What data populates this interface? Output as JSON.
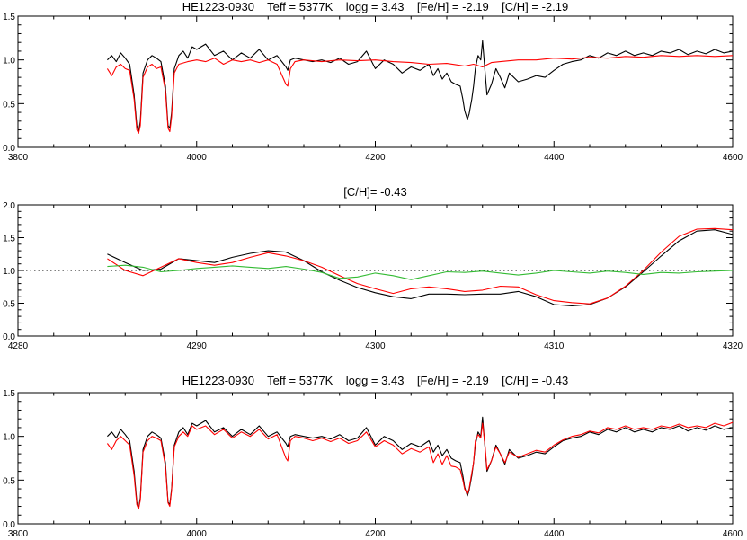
{
  "chart_data": [
    {
      "type": "line",
      "title": "HE1223-0930    Teff = 5377K    logg = 3.43    [Fe/H] = -2.19    [C/H] = -2.19",
      "xlabel": "",
      "ylabel": "",
      "xlim": [
        3800,
        4600
      ],
      "ylim": [
        0,
        1.5
      ],
      "xticks": [
        3800,
        4000,
        4200,
        4400,
        4600
      ],
      "yticks": [
        0.0,
        0.5,
        1.0,
        1.5
      ],
      "grid": false,
      "series": [
        {
          "color": "#000000",
          "x": [
            3900,
            3905,
            3910,
            3915,
            3920,
            3925,
            3930,
            3933,
            3935,
            3937,
            3940,
            3945,
            3950,
            3955,
            3960,
            3965,
            3968,
            3970,
            3972,
            3975,
            3980,
            3985,
            3990,
            3995,
            4000,
            4010,
            4020,
            4030,
            4040,
            4050,
            4060,
            4070,
            4080,
            4090,
            4100,
            4102,
            4105,
            4110,
            4120,
            4130,
            4140,
            4150,
            4160,
            4170,
            4180,
            4190,
            4200,
            4210,
            4220,
            4230,
            4240,
            4250,
            4260,
            4265,
            4270,
            4275,
            4280,
            4285,
            4290,
            4295,
            4298,
            4300,
            4303,
            4305,
            4308,
            4310,
            4312,
            4315,
            4318,
            4320,
            4323,
            4325,
            4330,
            4335,
            4340,
            4345,
            4350,
            4360,
            4370,
            4380,
            4390,
            4400,
            4410,
            4420,
            4430,
            4440,
            4450,
            4460,
            4470,
            4480,
            4490,
            4500,
            4510,
            4520,
            4530,
            4540,
            4550,
            4560,
            4570,
            4580,
            4590,
            4600
          ],
          "y": [
            1.0,
            1.05,
            0.98,
            1.08,
            1.02,
            0.95,
            0.6,
            0.25,
            0.18,
            0.3,
            0.85,
            1.0,
            1.05,
            1.02,
            0.98,
            0.7,
            0.25,
            0.22,
            0.4,
            0.9,
            1.05,
            1.1,
            1.02,
            1.15,
            1.12,
            1.18,
            1.05,
            1.1,
            1.0,
            1.08,
            1.02,
            1.12,
            1.0,
            1.05,
            0.92,
            0.88,
            1.0,
            1.02,
            1.0,
            0.98,
            1.0,
            0.97,
            1.02,
            0.95,
            0.98,
            1.1,
            0.9,
            1.0,
            0.95,
            0.85,
            0.92,
            0.88,
            0.95,
            0.82,
            0.9,
            0.78,
            0.85,
            0.75,
            0.72,
            0.7,
            0.55,
            0.42,
            0.32,
            0.38,
            0.55,
            0.7,
            0.9,
            1.05,
            1.0,
            1.22,
            0.85,
            0.6,
            0.72,
            0.9,
            0.8,
            0.68,
            0.85,
            0.75,
            0.78,
            0.82,
            0.8,
            0.88,
            0.95,
            0.98,
            1.0,
            1.05,
            1.02,
            1.08,
            1.05,
            1.1,
            1.05,
            1.08,
            1.05,
            1.1,
            1.08,
            1.12,
            1.06,
            1.1,
            1.07,
            1.12,
            1.08,
            1.1
          ]
        },
        {
          "color": "#ff0000",
          "x": [
            3900,
            3905,
            3910,
            3915,
            3920,
            3925,
            3930,
            3933,
            3935,
            3937,
            3940,
            3945,
            3950,
            3955,
            3960,
            3965,
            3968,
            3970,
            3972,
            3975,
            3980,
            3990,
            4000,
            4010,
            4020,
            4030,
            4040,
            4050,
            4060,
            4070,
            4080,
            4090,
            4100,
            4102,
            4105,
            4110,
            4120,
            4140,
            4160,
            4180,
            4200,
            4220,
            4240,
            4260,
            4280,
            4300,
            4310,
            4320,
            4330,
            4340,
            4360,
            4380,
            4400,
            4420,
            4440,
            4460,
            4480,
            4500,
            4520,
            4540,
            4560,
            4580,
            4600
          ],
          "y": [
            0.9,
            0.82,
            0.92,
            0.95,
            0.9,
            0.88,
            0.55,
            0.2,
            0.16,
            0.25,
            0.8,
            0.92,
            0.95,
            0.9,
            0.92,
            0.65,
            0.22,
            0.18,
            0.35,
            0.85,
            0.95,
            0.98,
            1.0,
            0.98,
            1.02,
            0.95,
            1.0,
            0.98,
            1.0,
            0.97,
            1.0,
            0.95,
            0.72,
            0.7,
            0.9,
            0.98,
            1.0,
            0.98,
            1.0,
            0.99,
            1.0,
            0.98,
            0.97,
            0.95,
            0.96,
            0.93,
            0.95,
            0.92,
            0.97,
            0.98,
            1.0,
            1.0,
            1.02,
            1.01,
            1.03,
            1.02,
            1.04,
            1.03,
            1.05,
            1.04,
            1.05,
            1.04,
            1.05
          ]
        }
      ]
    },
    {
      "type": "line",
      "title": "[C/H]= -0.43",
      "xlabel": "",
      "ylabel": "",
      "xlim": [
        4280,
        4320
      ],
      "ylim": [
        0,
        2.0
      ],
      "xticks": [
        4280,
        4290,
        4300,
        4310,
        4320
      ],
      "yticks": [
        0.0,
        0.5,
        1.0,
        1.5,
        2.0
      ],
      "grid": false,
      "reference_line": 1.0,
      "series": [
        {
          "color": "#000000",
          "x": [
            4285,
            4286,
            4287,
            4288,
            4289,
            4290,
            4291,
            4292,
            4293,
            4294,
            4295,
            4296,
            4297,
            4298,
            4299,
            4300,
            4301,
            4302,
            4303,
            4304,
            4305,
            4306,
            4307,
            4308,
            4309,
            4310,
            4311,
            4312,
            4313,
            4314,
            4315,
            4316,
            4317,
            4318,
            4319,
            4320
          ],
          "y": [
            1.25,
            1.12,
            1.0,
            1.02,
            1.18,
            1.15,
            1.12,
            1.2,
            1.26,
            1.3,
            1.28,
            1.15,
            0.98,
            0.85,
            0.74,
            0.66,
            0.6,
            0.57,
            0.64,
            0.64,
            0.63,
            0.64,
            0.64,
            0.68,
            0.6,
            0.48,
            0.46,
            0.48,
            0.58,
            0.75,
            0.98,
            1.22,
            1.45,
            1.6,
            1.62,
            1.55
          ]
        },
        {
          "color": "#ff0000",
          "x": [
            4285,
            4286,
            4287,
            4288,
            4289,
            4290,
            4291,
            4292,
            4293,
            4294,
            4295,
            4296,
            4297,
            4298,
            4299,
            4300,
            4301,
            4302,
            4303,
            4304,
            4305,
            4306,
            4307,
            4308,
            4309,
            4310,
            4311,
            4312,
            4313,
            4314,
            4315,
            4316,
            4317,
            4318,
            4319,
            4320
          ],
          "y": [
            1.18,
            1.0,
            0.92,
            1.05,
            1.18,
            1.12,
            1.08,
            1.12,
            1.2,
            1.27,
            1.22,
            1.15,
            1.05,
            0.92,
            0.8,
            0.72,
            0.65,
            0.72,
            0.75,
            0.72,
            0.68,
            0.7,
            0.76,
            0.75,
            0.63,
            0.54,
            0.51,
            0.49,
            0.58,
            0.76,
            1.0,
            1.28,
            1.52,
            1.63,
            1.64,
            1.62
          ]
        },
        {
          "color": "#33bb33",
          "x": [
            4285,
            4286,
            4287,
            4288,
            4289,
            4290,
            4291,
            4292,
            4293,
            4294,
            4295,
            4296,
            4297,
            4298,
            4299,
            4300,
            4301,
            4302,
            4303,
            4304,
            4305,
            4306,
            4307,
            4308,
            4309,
            4310,
            4311,
            4312,
            4313,
            4314,
            4315,
            4316,
            4317,
            4318,
            4319,
            4320
          ],
          "y": [
            1.06,
            1.08,
            1.05,
            0.98,
            1.0,
            1.03,
            1.05,
            1.07,
            1.05,
            1.03,
            1.06,
            1.02,
            0.97,
            0.88,
            0.9,
            0.96,
            0.92,
            0.86,
            0.92,
            0.98,
            0.97,
            0.99,
            0.96,
            0.93,
            0.96,
            1.0,
            0.98,
            0.96,
            0.99,
            0.97,
            0.94,
            0.97,
            0.96,
            0.98,
            0.99,
            1.0
          ]
        }
      ]
    },
    {
      "type": "line",
      "title": "HE1223-0930    Teff = 5377K    logg = 3.43    [Fe/H] = -2.19    [C/H] = -0.43",
      "xlabel": "",
      "ylabel": "",
      "xlim": [
        3800,
        4600
      ],
      "ylim": [
        0,
        1.5
      ],
      "xticks": [
        3800,
        4000,
        4200,
        4400,
        4600
      ],
      "yticks": [
        0.0,
        0.5,
        1.0,
        1.5
      ],
      "grid": false,
      "series": [
        {
          "color": "#000000",
          "x": [
            3900,
            3905,
            3910,
            3915,
            3920,
            3925,
            3930,
            3933,
            3935,
            3937,
            3940,
            3945,
            3950,
            3955,
            3960,
            3965,
            3968,
            3970,
            3972,
            3975,
            3980,
            3985,
            3990,
            3995,
            4000,
            4010,
            4020,
            4030,
            4040,
            4050,
            4060,
            4070,
            4080,
            4090,
            4100,
            4102,
            4105,
            4110,
            4120,
            4130,
            4140,
            4150,
            4160,
            4170,
            4180,
            4190,
            4200,
            4210,
            4220,
            4230,
            4240,
            4250,
            4260,
            4265,
            4270,
            4275,
            4280,
            4285,
            4290,
            4295,
            4298,
            4300,
            4303,
            4305,
            4308,
            4310,
            4312,
            4315,
            4318,
            4320,
            4323,
            4325,
            4330,
            4335,
            4340,
            4345,
            4350,
            4360,
            4370,
            4380,
            4390,
            4400,
            4410,
            4420,
            4430,
            4440,
            4450,
            4460,
            4470,
            4480,
            4490,
            4500,
            4510,
            4520,
            4530,
            4540,
            4550,
            4560,
            4570,
            4580,
            4590,
            4600
          ],
          "y": [
            1.0,
            1.05,
            0.98,
            1.08,
            1.02,
            0.95,
            0.6,
            0.25,
            0.18,
            0.3,
            0.85,
            1.0,
            1.05,
            1.02,
            0.98,
            0.7,
            0.25,
            0.22,
            0.4,
            0.9,
            1.05,
            1.1,
            1.02,
            1.15,
            1.12,
            1.18,
            1.05,
            1.1,
            1.0,
            1.08,
            1.02,
            1.12,
            1.0,
            1.05,
            0.92,
            0.88,
            1.0,
            1.02,
            1.0,
            0.98,
            1.0,
            0.97,
            1.02,
            0.95,
            0.98,
            1.1,
            0.9,
            1.0,
            0.95,
            0.85,
            0.92,
            0.88,
            0.95,
            0.82,
            0.9,
            0.78,
            0.85,
            0.75,
            0.72,
            0.7,
            0.55,
            0.42,
            0.32,
            0.38,
            0.55,
            0.7,
            0.9,
            1.05,
            1.0,
            1.22,
            0.85,
            0.6,
            0.72,
            0.9,
            0.8,
            0.68,
            0.85,
            0.75,
            0.78,
            0.82,
            0.8,
            0.88,
            0.95,
            0.98,
            1.0,
            1.05,
            1.02,
            1.08,
            1.05,
            1.1,
            1.05,
            1.08,
            1.05,
            1.1,
            1.08,
            1.12,
            1.06,
            1.1,
            1.07,
            1.12,
            1.08,
            1.1
          ]
        },
        {
          "color": "#ff0000",
          "x": [
            3900,
            3905,
            3910,
            3915,
            3920,
            3925,
            3930,
            3933,
            3935,
            3937,
            3940,
            3945,
            3950,
            3955,
            3960,
            3965,
            3968,
            3970,
            3972,
            3975,
            3980,
            3985,
            3990,
            3995,
            4000,
            4010,
            4020,
            4030,
            4040,
            4050,
            4060,
            4070,
            4080,
            4090,
            4100,
            4102,
            4105,
            4110,
            4120,
            4130,
            4140,
            4150,
            4160,
            4170,
            4180,
            4190,
            4200,
            4210,
            4220,
            4230,
            4240,
            4250,
            4260,
            4265,
            4270,
            4275,
            4280,
            4285,
            4290,
            4295,
            4298,
            4300,
            4303,
            4305,
            4308,
            4310,
            4312,
            4315,
            4318,
            4320,
            4323,
            4325,
            4330,
            4335,
            4340,
            4345,
            4350,
            4360,
            4370,
            4380,
            4390,
            4400,
            4410,
            4420,
            4430,
            4440,
            4450,
            4460,
            4470,
            4480,
            4490,
            4500,
            4510,
            4520,
            4530,
            4540,
            4550,
            4560,
            4570,
            4580,
            4590,
            4600
          ],
          "y": [
            0.92,
            0.85,
            0.95,
            1.0,
            0.95,
            0.9,
            0.55,
            0.22,
            0.17,
            0.27,
            0.82,
            0.95,
            1.0,
            0.98,
            0.95,
            0.66,
            0.24,
            0.2,
            0.38,
            0.88,
            1.0,
            1.05,
            1.0,
            1.12,
            1.08,
            1.12,
            1.02,
            1.08,
            0.98,
            1.05,
            1.0,
            1.08,
            0.97,
            1.02,
            0.75,
            0.72,
            0.95,
            1.0,
            0.98,
            0.95,
            0.98,
            0.94,
            0.98,
            0.92,
            0.95,
            1.05,
            0.88,
            0.95,
            0.9,
            0.8,
            0.86,
            0.82,
            0.88,
            0.7,
            0.8,
            0.68,
            0.78,
            0.66,
            0.65,
            0.62,
            0.5,
            0.4,
            0.34,
            0.4,
            0.58,
            0.7,
            0.95,
            1.02,
            0.98,
            1.15,
            0.88,
            0.62,
            0.72,
            0.88,
            0.8,
            0.7,
            0.82,
            0.76,
            0.8,
            0.84,
            0.82,
            0.9,
            0.96,
            1.0,
            1.02,
            1.06,
            1.04,
            1.1,
            1.08,
            1.12,
            1.08,
            1.1,
            1.08,
            1.12,
            1.1,
            1.14,
            1.1,
            1.12,
            1.1,
            1.15,
            1.12,
            1.16
          ]
        }
      ]
    }
  ]
}
